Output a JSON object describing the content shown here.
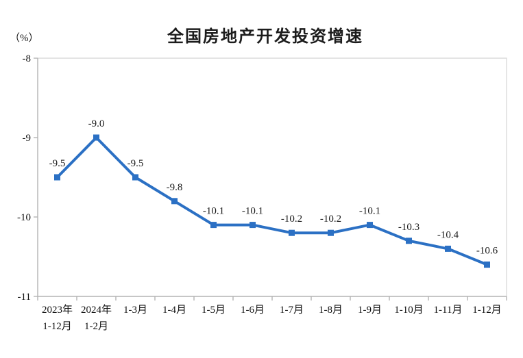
{
  "chart_data": {
    "type": "line",
    "title": "全国房地产开发投资增速",
    "unit_label": "（%）",
    "categories": [
      [
        "2023年",
        "1-12月"
      ],
      [
        "2024年",
        "1-2月"
      ],
      [
        "1-3月"
      ],
      [
        "1-4月"
      ],
      [
        "1-5月"
      ],
      [
        "1-6月"
      ],
      [
        "1-7月"
      ],
      [
        "1-8月"
      ],
      [
        "1-9月"
      ],
      [
        "1-10月"
      ],
      [
        "1-11月"
      ],
      [
        "1-12月"
      ]
    ],
    "values": [
      -9.5,
      -9.0,
      -9.5,
      -9.8,
      -10.1,
      -10.1,
      -10.2,
      -10.2,
      -10.1,
      -10.3,
      -10.4,
      -10.6
    ],
    "data_labels": [
      "-9.5",
      "-9.0",
      "-9.5",
      "-9.8",
      "-10.1",
      "-10.1",
      "-10.2",
      "-10.2",
      "-10.1",
      "-10.3",
      "-10.4",
      "-10.6"
    ],
    "y_ticks": [
      -8,
      -9,
      -10,
      -11
    ],
    "y_tick_labels": [
      "-8",
      "-9",
      "-10",
      "-11"
    ],
    "ylim": [
      -11,
      -8
    ],
    "xlabel": "",
    "ylabel": "（%）",
    "grid": false,
    "legend": "none",
    "marker": "square",
    "line_color": "#2B70C4",
    "marker_color": "#2B70C4",
    "data_label_color": "#1a1a1a",
    "axis_color": "#b3b3b3",
    "border_color": "#dcdcdc",
    "tick_text_color": "#111111"
  }
}
